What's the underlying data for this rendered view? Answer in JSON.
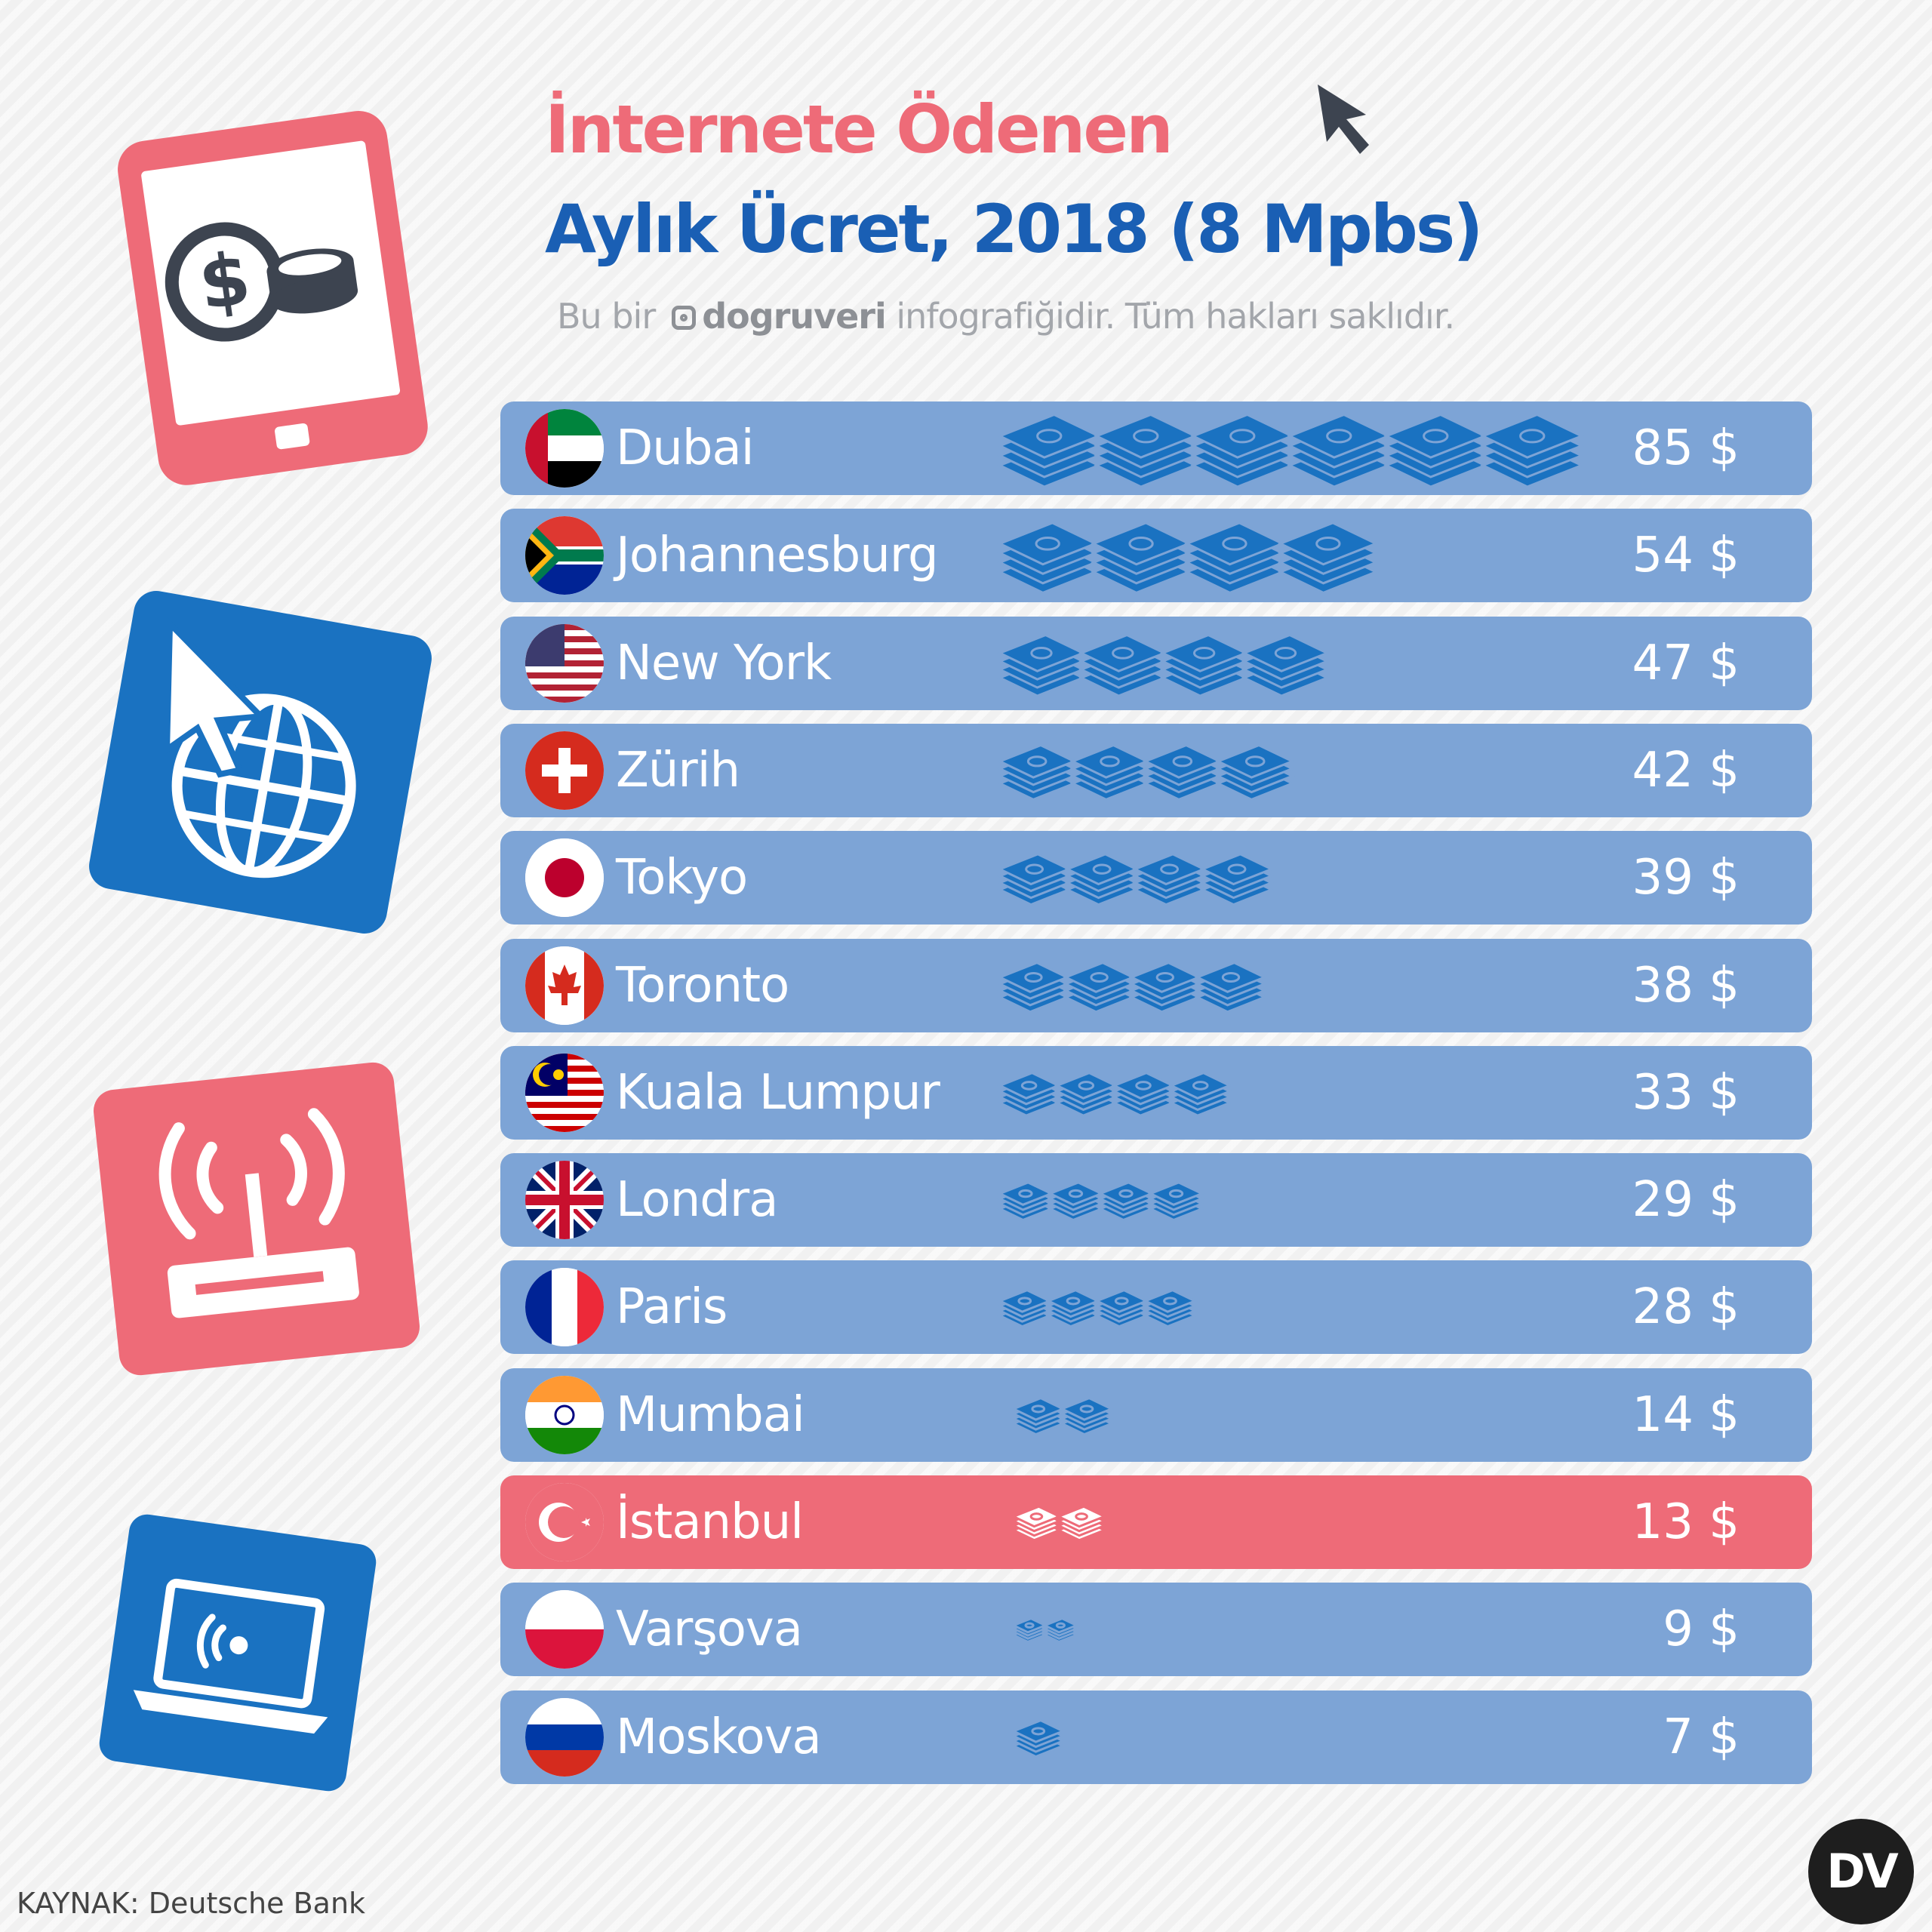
{
  "header": {
    "title_line1": "İnternete Ödenen",
    "title_line2": "Aylık Ücret, 2018 (8 Mpbs)",
    "subtitle_pre": "Bu bir",
    "subtitle_brand": "dogruveri",
    "subtitle_post": "infografiğidir. Tüm hakları saklıdır."
  },
  "footer": {
    "source": "KAYNAK: Deutsche Bank",
    "logo_text": "DV"
  },
  "colors": {
    "accent_pink": "#ee6b78",
    "accent_blue": "#1a5fb4",
    "row_blue": "#7da4d6",
    "icon_blue": "#1a72c1"
  },
  "icons": [
    "tablet-dollar-icon",
    "globe-cursor-icon",
    "wifi-router-icon",
    "laptop-wifi-icon",
    "cursor-arrow-icon",
    "money-stack-icon"
  ],
  "chart_data": {
    "type": "bar",
    "categories": [
      "Dubai",
      "Johannesburg",
      "New York",
      "Zürih",
      "Tokyo",
      "Toronto",
      "Kuala Lumpur",
      "Londra",
      "Paris",
      "Mumbai",
      "İstanbul",
      "Varşova",
      "Moskova"
    ],
    "values": [
      85,
      54,
      47,
      42,
      39,
      38,
      33,
      29,
      28,
      14,
      13,
      9,
      7
    ],
    "value_labels": [
      "85 $",
      "54 $",
      "47 $",
      "42 $",
      "39 $",
      "38 $",
      "33 $",
      "29 $",
      "28 $",
      "14 $",
      "13 $",
      "9 $",
      "7 $"
    ],
    "unit": "$",
    "flags": [
      "ae",
      "za",
      "us",
      "ch",
      "jp",
      "ca",
      "my",
      "gb",
      "fr",
      "in",
      "tr",
      "pl",
      "ru"
    ],
    "stack_counts": [
      6,
      4,
      4,
      4,
      4,
      4,
      4,
      4,
      4,
      2,
      2,
      2,
      1
    ],
    "highlight": "İstanbul"
  }
}
